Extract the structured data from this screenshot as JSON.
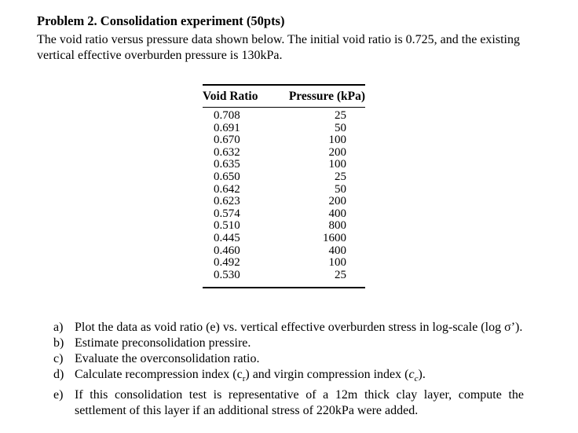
{
  "page": {
    "title": "Problem 2. Consolidation experiment (50pts)",
    "intro": "The void ratio versus pressure data shown below. The initial void ratio is 0.725, and the existing vertical effective overburden pressure is 130kPa."
  },
  "table": {
    "headers": [
      "Void Ratio",
      "Pressure (kPa)"
    ],
    "rows": [
      [
        "0.708",
        "25"
      ],
      [
        "0.691",
        "50"
      ],
      [
        "0.670",
        "100"
      ],
      [
        "0.632",
        "200"
      ],
      [
        "0.635",
        "100"
      ],
      [
        "0.650",
        "25"
      ],
      [
        "0.642",
        "50"
      ],
      [
        "0.623",
        "200"
      ],
      [
        "0.574",
        "400"
      ],
      [
        "0.510",
        "800"
      ],
      [
        "0.445",
        "1600"
      ],
      [
        "0.460",
        "400"
      ],
      [
        "0.492",
        "100"
      ],
      [
        "0.530",
        "25"
      ]
    ]
  },
  "questions": {
    "items": [
      {
        "label": "a)",
        "text": "Plot the data as void ratio (e) vs. vertical effective overburden stress in log-scale (log σ’)."
      },
      {
        "label": "b)",
        "text": "Estimate preconsolidation pressire."
      },
      {
        "label": "c)",
        "text": "Evaluate the overconsolidation ratio."
      },
      {
        "label": "d)",
        "text": "Calculate recompression index (cr) and virgin compression index (cc).",
        "html": "Calculate recompression index (c<sub>r</sub>) and virgin compression index (<i>c<sub>c</sub></i>)."
      },
      {
        "label": "e)",
        "text": "If this consolidation test is representative of a 12m thick clay layer, compute the settlement of this layer if an additional stress of 220kPa were added."
      }
    ]
  },
  "colors": {
    "text": "#000000",
    "background": "#ffffff"
  }
}
